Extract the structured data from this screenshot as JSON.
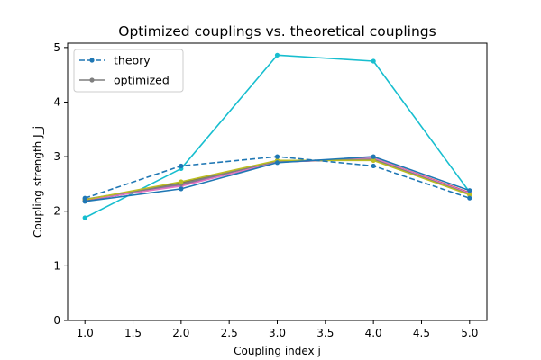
{
  "chart_data": {
    "type": "line",
    "title": "Optimized couplings vs. theoretical couplings",
    "xlabel": "Coupling index j",
    "ylabel": "Coupling strength J_j",
    "xlim": [
      0.82,
      5.18
    ],
    "ylim": [
      0,
      5.08
    ],
    "xticks": [
      1.0,
      1.5,
      2.0,
      2.5,
      3.0,
      3.5,
      4.0,
      4.5,
      5.0
    ],
    "xtick_labels": [
      "1.0",
      "1.5",
      "2.0",
      "2.5",
      "3.0",
      "3.5",
      "4.0",
      "4.5",
      "5.0"
    ],
    "yticks": [
      0,
      1,
      2,
      3,
      4,
      5
    ],
    "ytick_labels": [
      "0",
      "1",
      "2",
      "3",
      "4",
      "5"
    ],
    "grid": false,
    "legend": {
      "placement": "top-left",
      "entries": [
        {
          "label": "theory",
          "style": "dashed",
          "color": "#1f77b4"
        },
        {
          "label": "optimized",
          "style": "solid",
          "color": "#7f7f7f"
        }
      ]
    },
    "x": [
      1,
      2,
      3,
      4,
      5
    ],
    "series": [
      {
        "color": "#17becf",
        "style": "solid",
        "values": [
          1.88,
          2.78,
          4.86,
          4.75,
          2.35
        ]
      },
      {
        "color": "#ff7f0e",
        "style": "solid",
        "values": [
          2.2,
          2.48,
          2.91,
          2.95,
          2.32
        ]
      },
      {
        "color": "#2ca02c",
        "style": "solid",
        "values": [
          2.21,
          2.52,
          2.92,
          2.94,
          2.31
        ]
      },
      {
        "color": "#d62728",
        "style": "solid",
        "values": [
          2.2,
          2.47,
          2.9,
          2.97,
          2.34
        ]
      },
      {
        "color": "#9467bd",
        "style": "solid",
        "values": [
          2.19,
          2.49,
          2.9,
          2.96,
          2.33
        ]
      },
      {
        "color": "#8c564b",
        "style": "solid",
        "values": [
          2.2,
          2.51,
          2.91,
          2.95,
          2.32
        ]
      },
      {
        "color": "#e377c2",
        "style": "solid",
        "values": [
          2.21,
          2.46,
          2.9,
          2.97,
          2.33
        ]
      },
      {
        "color": "#7f7f7f",
        "style": "solid",
        "values": [
          2.22,
          2.5,
          2.92,
          2.95,
          2.31
        ]
      },
      {
        "color": "#bcbd22",
        "style": "solid",
        "values": [
          2.21,
          2.54,
          2.93,
          2.93,
          2.3
        ]
      },
      {
        "color": "#1f77b4",
        "style": "solid",
        "values": [
          2.18,
          2.41,
          2.89,
          3.0,
          2.38
        ]
      },
      {
        "name": "theory",
        "color": "#1f77b4",
        "style": "dashed",
        "values": [
          2.24,
          2.83,
          3.0,
          2.83,
          2.24
        ]
      }
    ]
  }
}
